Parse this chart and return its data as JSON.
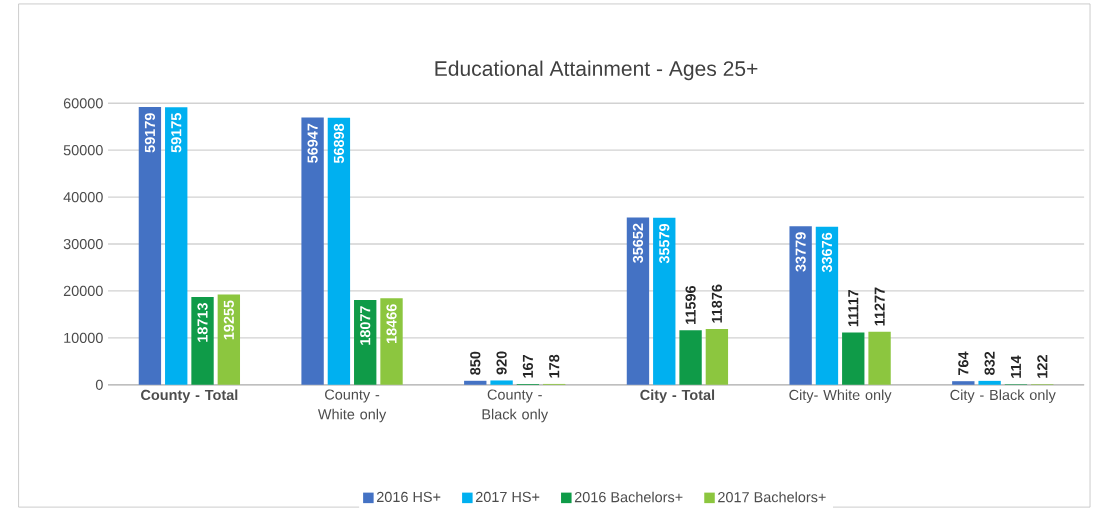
{
  "chart_data": {
    "type": "bar",
    "title": "Educational Attainment - Ages 25+",
    "categories": [
      "**County - Total**",
      "County - White only",
      "County - Black only",
      "**City - Total**",
      "City- White only",
      "City - Black only"
    ],
    "series": [
      {
        "name": "2016 HS+",
        "color": "#4472c4",
        "values": [
          59179,
          56947,
          850,
          35652,
          33779,
          764
        ]
      },
      {
        "name": "2017 HS+",
        "color": "#00b0f0",
        "values": [
          59175,
          56898,
          920,
          35579,
          33676,
          832
        ]
      },
      {
        "name": "2016 Bachelors+",
        "color": "#0f9b48",
        "values": [
          18713,
          18077,
          167,
          11596,
          11117,
          114
        ]
      },
      {
        "name": "2017 Bachelors+",
        "color": "#8cc63f",
        "values": [
          19255,
          18466,
          178,
          11876,
          11277,
          122
        ]
      }
    ],
    "ylim": [
      0,
      60000
    ],
    "yticks": [
      0,
      10000,
      20000,
      30000,
      40000,
      50000,
      60000
    ],
    "grid": "y",
    "legend": "bottom",
    "data_labels": true
  }
}
